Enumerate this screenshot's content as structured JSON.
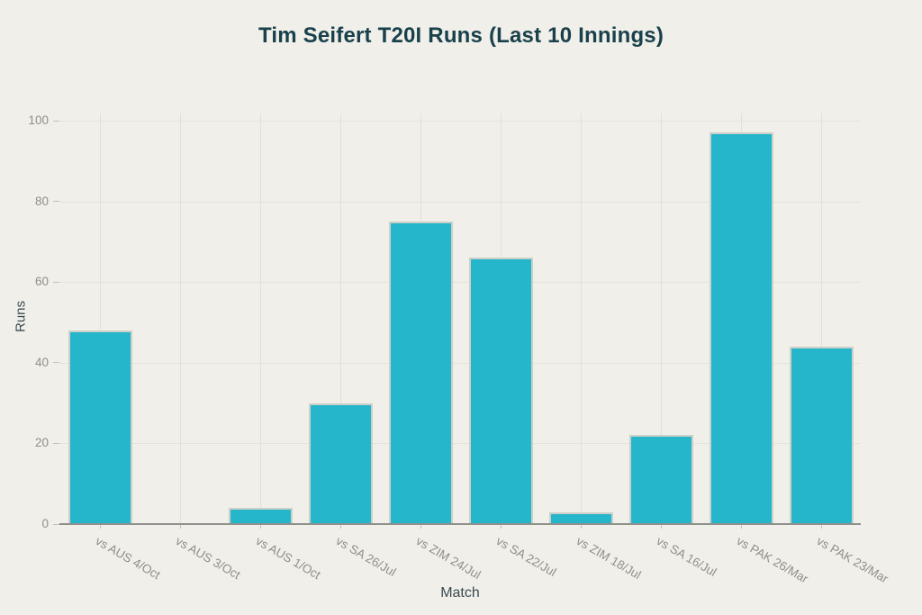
{
  "chart_data": {
    "type": "bar",
    "title": "Tim Seifert T20I Runs (Last 10 Innings)",
    "categories": [
      "vs AUS 4/Oct",
      "vs AUS 3/Oct",
      "vs AUS 1/Oct",
      "vs SA 26/Jul",
      "vs ZIM 24/Jul",
      "vs SA 22/Jul",
      "vs ZIM 18/Jul",
      "vs SA 16/Jul",
      "vs PAK 26/Mar",
      "vs PAK 23/Mar"
    ],
    "values": [
      48,
      0,
      4,
      30,
      75,
      66,
      3,
      22,
      97,
      44
    ],
    "xlabel": "Match",
    "ylabel": "Runs",
    "ylim": [
      0,
      100
    ],
    "yticks": [
      0,
      20,
      40,
      60,
      80,
      100
    ],
    "grid": true,
    "legend_position": "none",
    "colors": {
      "background": "#f0efe9",
      "bar_fill": "#26b6cb",
      "bar_border": "#cdd0c8",
      "h_gridline": "#e3e2da",
      "v_gridline": "#e1e0d8",
      "axis_line": "#90908c",
      "tick_mark": "#c2c2ba",
      "tick_label": "#8f8f8b",
      "title_text": "#19414b",
      "axis_title_text": "#3b4c52"
    }
  }
}
